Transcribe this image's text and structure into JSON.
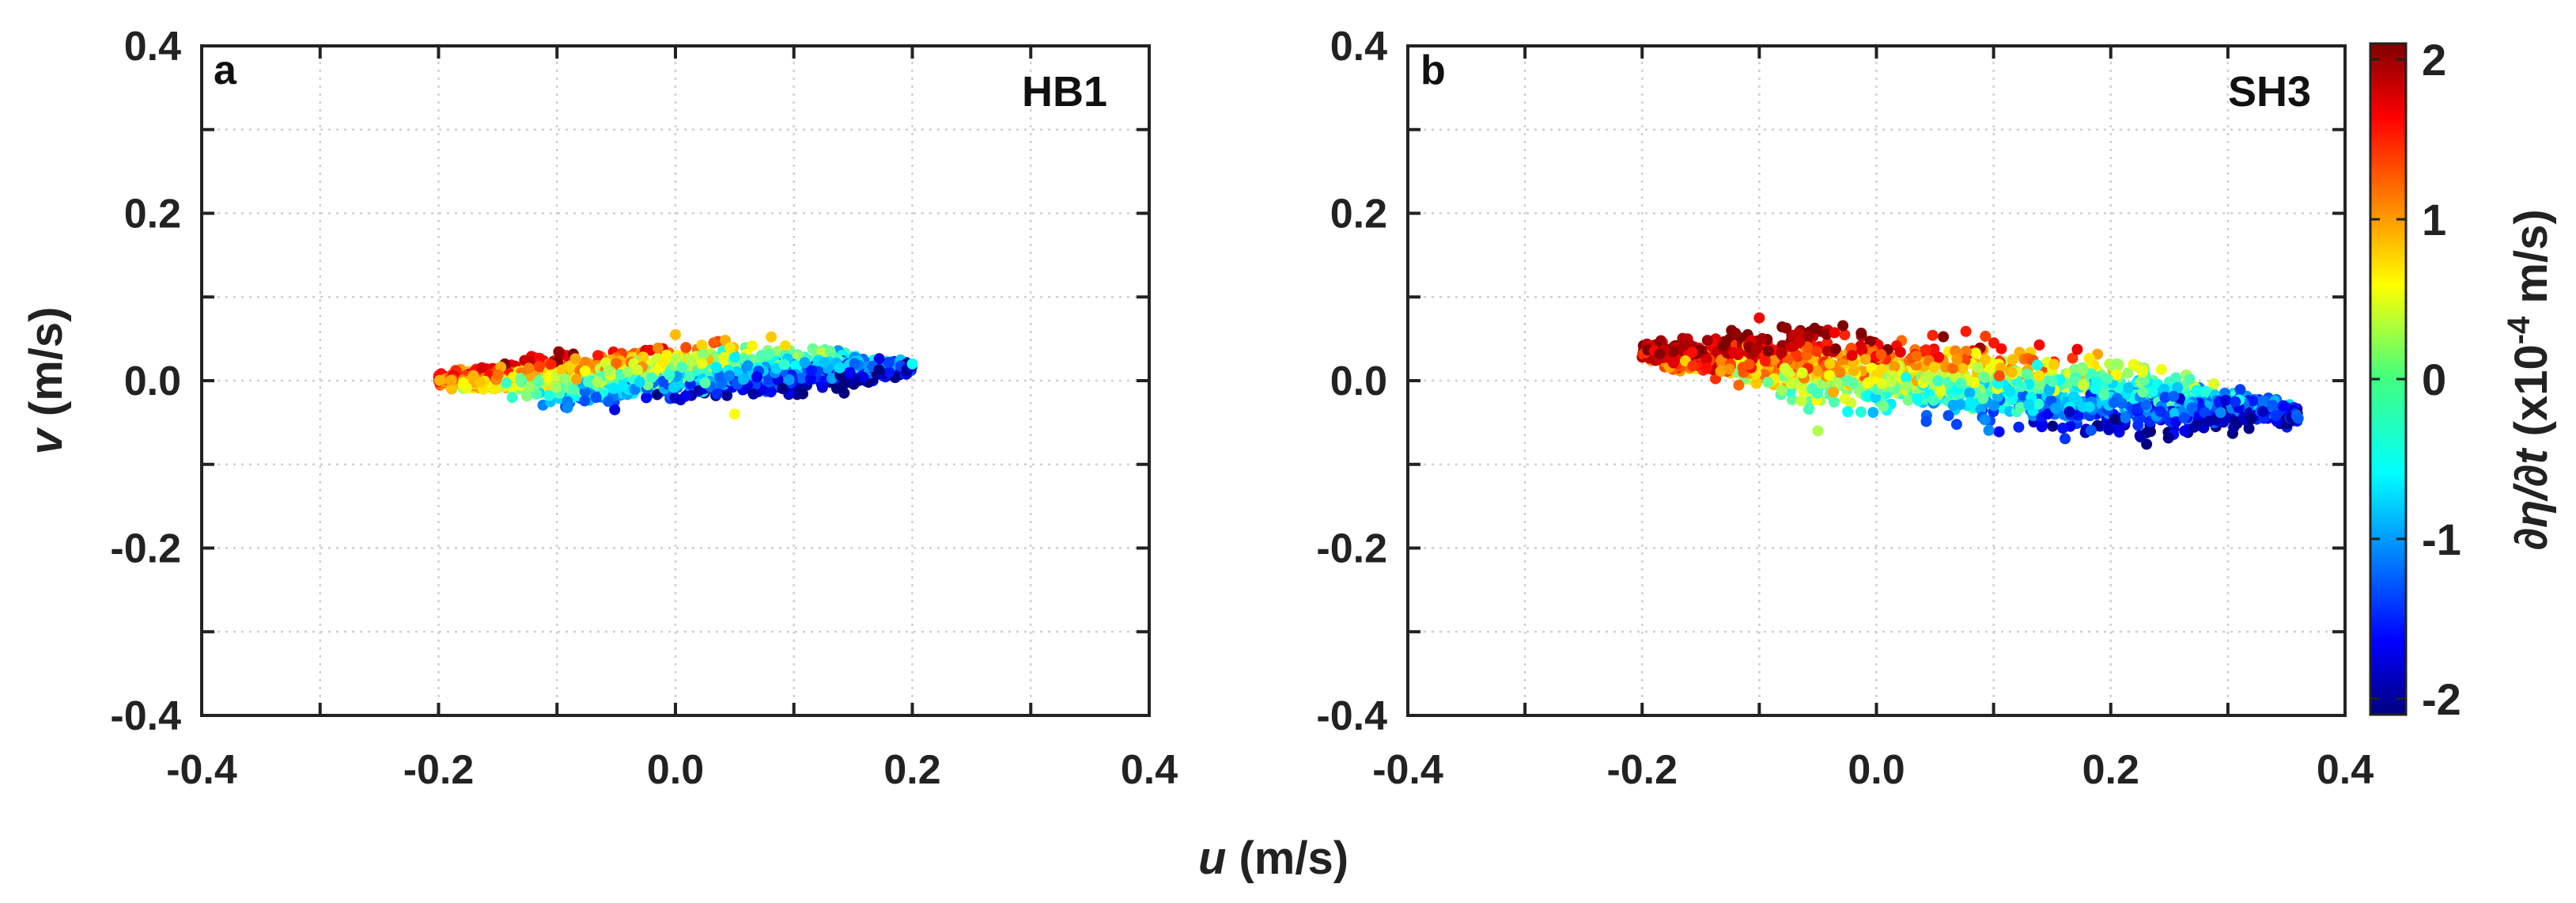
{
  "chart_data": [
    {
      "type": "scatter",
      "panel": "a",
      "site": "HB1",
      "xlim": [
        -0.4,
        0.4
      ],
      "ylim": [
        -0.4,
        0.4
      ],
      "xticks": [
        "-0.4",
        "-0.2",
        "0.0",
        "0.2",
        "0.4"
      ],
      "yticks": [
        "0.4",
        "0.2",
        "0.0",
        "-0.2",
        "-0.4"
      ],
      "ylabel_var": "v",
      "ylabel_unit": " (m/s)",
      "grid": true,
      "cloud": {
        "u_range": [
          -0.2,
          0.2
        ],
        "v_center_at_u_min": 0.0,
        "v_center_at_u_max": 0.015,
        "v_half_spread": 0.03,
        "color_at_u_min": 1.2,
        "color_at_u_max": -1.7,
        "n_points": 1500,
        "outliers": [
          {
            "u": 0.2,
            "v": 0.02,
            "c": -0.5
          },
          {
            "u": 0.05,
            "v": -0.04,
            "c": 0.5
          },
          {
            "u": 0.0,
            "v": 0.055,
            "c": 0.8
          }
        ]
      }
    },
    {
      "type": "scatter",
      "panel": "b",
      "site": "SH3",
      "xlim": [
        -0.4,
        0.4
      ],
      "ylim": [
        -0.4,
        0.4
      ],
      "xticks": [
        "-0.4",
        "-0.2",
        "0.0",
        "0.2",
        "0.4"
      ],
      "yticks": [
        "0.4",
        "0.2",
        "0.0",
        "-0.2",
        "-0.4"
      ],
      "grid": true,
      "cloud": {
        "u_range": [
          -0.2,
          0.36
        ],
        "v_center_at_u_min": 0.035,
        "v_center_at_u_max": -0.04,
        "v_half_spread": 0.045,
        "color_at_u_min": 1.8,
        "color_at_u_max": -1.6,
        "n_points": 1800,
        "outliers": [
          {
            "u": 0.36,
            "v": -0.045,
            "c": -1.2
          },
          {
            "u": -0.1,
            "v": 0.075,
            "c": 1.6
          },
          {
            "u": -0.05,
            "v": -0.06,
            "c": 0.2
          }
        ]
      }
    }
  ],
  "xlabel_var": "u",
  "xlabel_unit": " (m/s)",
  "colorbar": {
    "min": -2.1,
    "max": 2.1,
    "ticks": [
      "2",
      "1",
      "0",
      "-1",
      "-2"
    ],
    "label_expr": "∂η/∂t",
    "label_unit_pre": " (x10",
    "label_exp": "-4",
    "label_unit_post": " m/s)",
    "colormap": "jet"
  }
}
